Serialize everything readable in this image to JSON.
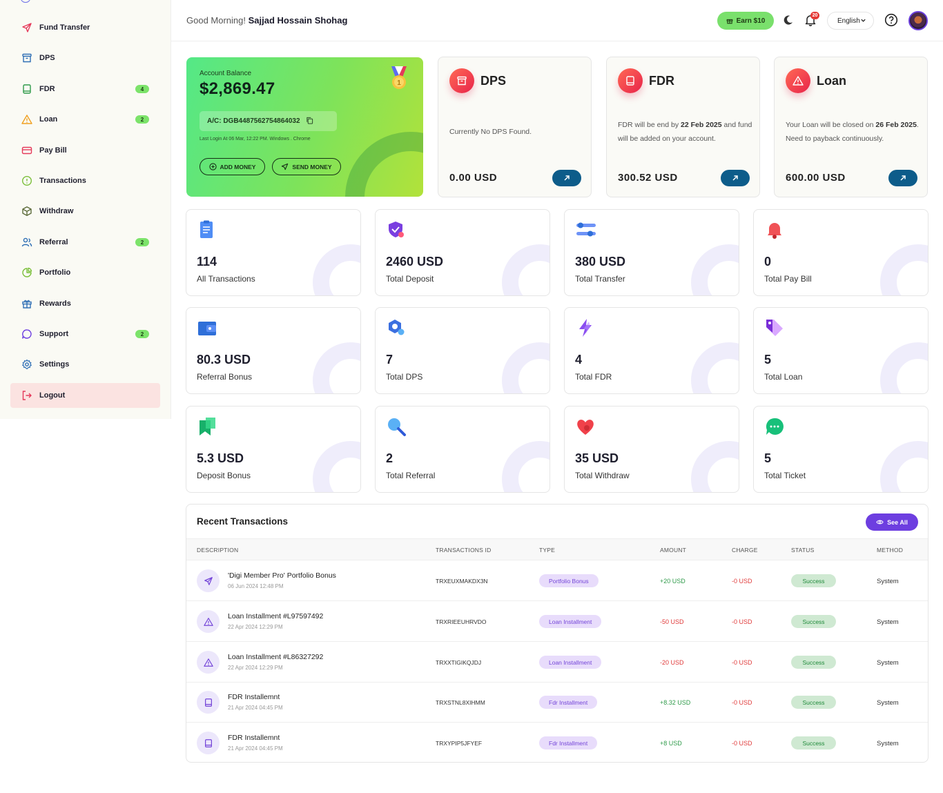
{
  "sidebar": {
    "items": [
      {
        "label": "Fund Transfer",
        "icon": "send-icon",
        "badge": "",
        "color": "#e5395a"
      },
      {
        "label": "DPS",
        "icon": "archive-icon",
        "badge": "",
        "color": "#2f6fb5"
      },
      {
        "label": "FDR",
        "icon": "book-icon",
        "badge": "4",
        "color": "#2e9a49"
      },
      {
        "label": "Loan",
        "icon": "warning-icon",
        "badge": "2",
        "color": "#f0a020"
      },
      {
        "label": "Pay Bill",
        "icon": "card-icon",
        "badge": "",
        "color": "#e5395a"
      },
      {
        "label": "Transactions",
        "icon": "info-circle-icon",
        "badge": "",
        "color": "#7bbf3a"
      },
      {
        "label": "Withdraw",
        "icon": "box-icon",
        "badge": "",
        "color": "#5c6b3a"
      },
      {
        "label": "Referral",
        "icon": "users-icon",
        "badge": "2",
        "color": "#2f6fb5"
      },
      {
        "label": "Portfolio",
        "icon": "pie-icon",
        "badge": "",
        "color": "#7bbf3a"
      },
      {
        "label": "Rewards",
        "icon": "gift-icon",
        "badge": "",
        "color": "#2f6fb5"
      },
      {
        "label": "Support",
        "icon": "chat-icon",
        "badge": "2",
        "color": "#6d3ee0"
      },
      {
        "label": "Settings",
        "icon": "gear-icon",
        "badge": "",
        "color": "#2f6fb5"
      },
      {
        "label": "Logout",
        "icon": "logout-icon",
        "badge": "",
        "color": "#e5395a"
      }
    ]
  },
  "header": {
    "greeting": "Good Morning!",
    "user_name": "Sajjad Hossain Shohag",
    "earn_label": "Earn $10",
    "notification_count": "20",
    "language": "English"
  },
  "balance": {
    "label": "Account Balance",
    "amount": "$2,869.47",
    "account": "A/C: DGB4487562754864032",
    "last_login": "Last Login At 06 Mar, 12:22 PM. Windows . Chrome",
    "add_money": "ADD MONEY",
    "send_money": "SEND MONEY"
  },
  "products": [
    {
      "title": "DPS",
      "desc_pre": "Currently No DPS Found.",
      "desc_b1": "",
      "desc_mid": "",
      "desc_b2": "",
      "desc_post": "",
      "value": "0.00 USD"
    },
    {
      "title": "FDR",
      "desc_pre": "FDR will be end by ",
      "desc_b1": "22 Feb 2025",
      "desc_mid": " and fund will be added on your account.",
      "desc_b2": "",
      "desc_post": "",
      "value": "300.52 USD"
    },
    {
      "title": "Loan",
      "desc_pre": "Your Loan will be closed on ",
      "desc_b1": "26 Feb 2025",
      "desc_mid": ". Need to payback continuously.",
      "desc_b2": "",
      "desc_post": "",
      "value": "600.00 USD"
    }
  ],
  "stats": [
    {
      "value": "114",
      "label": "All Transactions",
      "icon": "clipboard-icon"
    },
    {
      "value": "2460 USD",
      "label": "Total Deposit",
      "icon": "shield-check-icon"
    },
    {
      "value": "380 USD",
      "label": "Total Transfer",
      "icon": "sliders-icon"
    },
    {
      "value": "0",
      "label": "Total Pay Bill",
      "icon": "bell-icon"
    },
    {
      "value": "80.3 USD",
      "label": "Referral Bonus",
      "icon": "wallet-icon"
    },
    {
      "value": "7",
      "label": "Total DPS",
      "icon": "hexagon-icon"
    },
    {
      "value": "4",
      "label": "Total FDR",
      "icon": "bolt-icon"
    },
    {
      "value": "5",
      "label": "Total Loan",
      "icon": "tag-icon"
    },
    {
      "value": "5.3 USD",
      "label": "Deposit Bonus",
      "icon": "bookmark-icon"
    },
    {
      "value": "2",
      "label": "Total Referral",
      "icon": "search-user-icon"
    },
    {
      "value": "35 USD",
      "label": "Total Withdraw",
      "icon": "heart-icon"
    },
    {
      "value": "5",
      "label": "Total Ticket",
      "icon": "chat-bubble-icon"
    }
  ],
  "recent": {
    "title": "Recent Transactions",
    "see_all": "See All",
    "columns": [
      "DESCRIPTION",
      "TRANSACTIONS ID",
      "TYPE",
      "AMOUNT",
      "CHARGE",
      "STATUS",
      "METHOD"
    ],
    "rows": [
      {
        "icon": "send-icon",
        "desc": "'Digi Member Pro' Portfolio Bonus",
        "date": "06 Jun 2024 12:48 PM",
        "id": "TRXEUXMAKDX3N",
        "type": "Portfolio Bonus",
        "amount": "+20 USD",
        "charge": "-0 USD",
        "status": "Success",
        "method": "System"
      },
      {
        "icon": "warning-icon",
        "desc": "Loan Installment #L97597492",
        "date": "22 Apr 2024 12:29 PM",
        "id": "TRXRIEEUHRVDO",
        "type": "Loan Installment",
        "amount": "-50 USD",
        "charge": "-0 USD",
        "status": "Success",
        "method": "System"
      },
      {
        "icon": "warning-icon",
        "desc": "Loan Installment #L86327292",
        "date": "22 Apr 2024 12:29 PM",
        "id": "TRXXTIGIKQJDJ",
        "type": "Loan Installment",
        "amount": "-20 USD",
        "charge": "-0 USD",
        "status": "Success",
        "method": "System"
      },
      {
        "icon": "book-icon",
        "desc": "FDR Installemnt",
        "date": "21 Apr 2024 04:45 PM",
        "id": "TRXSTNL8XIHMM",
        "type": "Fdr Installment",
        "amount": "+8.32 USD",
        "charge": "-0 USD",
        "status": "Success",
        "method": "System"
      },
      {
        "icon": "book-icon",
        "desc": "FDR Installemnt",
        "date": "21 Apr 2024 04:45 PM",
        "id": "TRXYPIP5JFYEF",
        "type": "Fdr Installment",
        "amount": "+8 USD",
        "charge": "-0 USD",
        "status": "Success",
        "method": "System"
      }
    ]
  },
  "colors": {
    "brand_purple": "#6d3ee0",
    "green": "#7ae06c",
    "red": "#e5395a",
    "blue": "#0d5c8a"
  }
}
